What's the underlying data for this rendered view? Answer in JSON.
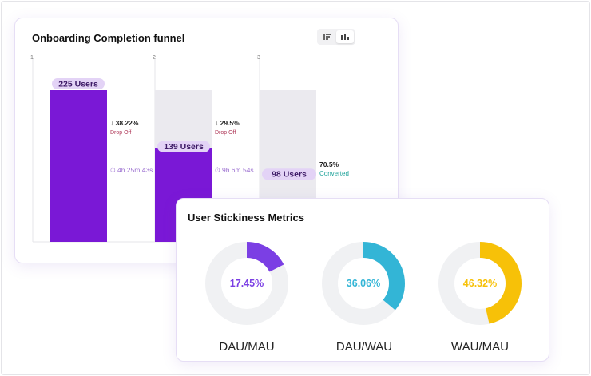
{
  "funnel": {
    "title": "Onboarding Completion funnel",
    "toggle": {
      "options": [
        "list-view-icon",
        "bar-chart-icon"
      ],
      "active": 1
    }
  },
  "stickiness": {
    "title": "User Stickiness Metrics"
  },
  "chart_data": [
    {
      "type": "bar",
      "title": "Onboarding Completion funnel",
      "categories": [
        "1",
        "2",
        "3"
      ],
      "values": [
        225,
        139,
        98
      ],
      "value_labels": [
        "225 Users",
        "139 Users",
        "98 Users"
      ],
      "unit": "Users",
      "ylim": [
        0,
        225
      ],
      "steps": [
        {
          "drop_pct": "38.22%",
          "drop_label": "Drop Off",
          "time": "4h 25m 43s"
        },
        {
          "drop_pct": "29.5%",
          "drop_label": "Drop Off",
          "time": "9h 6m 54s"
        }
      ],
      "converted": {
        "pct": "70.5%",
        "label": "Converted"
      },
      "colors": {
        "bar": "#7a18d6",
        "ghost": "#ebeaef",
        "pill": "#e3d3f6",
        "drop": "#b03a5a",
        "time": "#9b6fd0",
        "converted": "#1fa39a"
      }
    },
    {
      "type": "pie",
      "style": "donut",
      "title": "User Stickiness Metrics",
      "items": [
        {
          "name": "DAU/MAU",
          "value": 17.45,
          "label": "17.45%",
          "color": "#7b3fe4"
        },
        {
          "name": "DAU/WAU",
          "value": 36.06,
          "label": "36.06%",
          "color": "#33b5d6"
        },
        {
          "name": "WAU/MAU",
          "value": 46.32,
          "label": "46.32%",
          "color": "#f7c108"
        }
      ],
      "track_color": "#f0f1f3"
    }
  ]
}
